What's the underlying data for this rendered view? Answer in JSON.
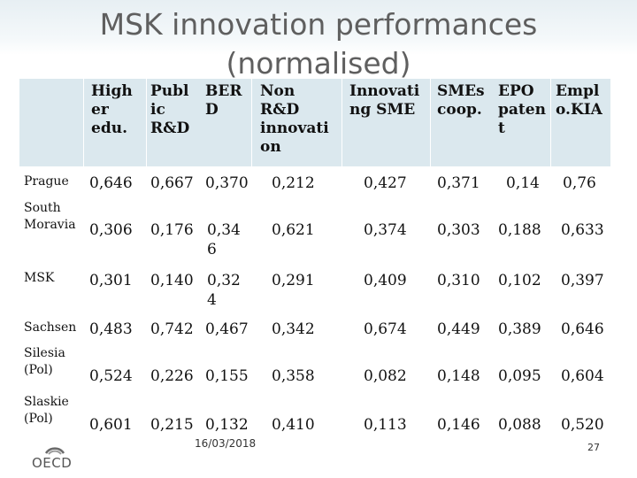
{
  "title_line1": "MSK innovation performances",
  "title_line2": "(normalised)",
  "headers": [
    {
      "lines": [
        "High",
        "er",
        "edu."
      ]
    },
    {
      "lines": [
        "Publ",
        "ic",
        "R&D"
      ]
    },
    {
      "lines": [
        "BER",
        "D"
      ]
    },
    {
      "lines": [
        "Non",
        "R&D",
        "innovati",
        "on"
      ]
    },
    {
      "lines": [
        "Innovati",
        "ng SME"
      ]
    },
    {
      "lines": [
        "SMEs",
        "coop."
      ]
    },
    {
      "lines": [
        "EPO",
        "paten",
        "t"
      ]
    },
    {
      "lines": [
        "Empl",
        "o.KIA"
      ]
    }
  ],
  "rows": [
    {
      "label_lines": [
        "Prague"
      ],
      "values": [
        "0,646",
        "0,667",
        "0,370",
        "0,212",
        "0,427",
        "0,371",
        "0,14",
        "0,76"
      ]
    },
    {
      "label_lines": [
        "South",
        "Moravia"
      ],
      "values": [
        "0,306",
        "0,176",
        "0,34 6",
        "0,621",
        "0,374",
        "0,303",
        "0,188",
        "0,633"
      ]
    },
    {
      "label_lines": [
        "MSK"
      ],
      "values": [
        "0,301",
        "0,140",
        "0,32 4",
        "0,291",
        "0,409",
        "0,310",
        "0,102",
        "0,397"
      ]
    },
    {
      "label_lines": [
        "Sachsen"
      ],
      "values": [
        "0,483",
        "0,742",
        "0,467",
        "0,342",
        "0,674",
        "0,449",
        "0,389",
        "0,646"
      ]
    },
    {
      "label_lines": [
        "Silesia",
        "(Pol)"
      ],
      "values": [
        "0,524",
        "0,226",
        "0,155",
        "0,358",
        "0,082",
        "0,148",
        "0,095",
        "0,604"
      ]
    },
    {
      "label_lines": [
        "Slaskie",
        "(Pol)"
      ],
      "values": [
        "0,601",
        "0,215",
        "0,132",
        "0,410",
        "0,113",
        "0,146",
        "0,088",
        "0,520"
      ]
    }
  ],
  "footer": {
    "logo_text": "OECD",
    "date": "16/03/2018",
    "page_number": "27"
  }
}
